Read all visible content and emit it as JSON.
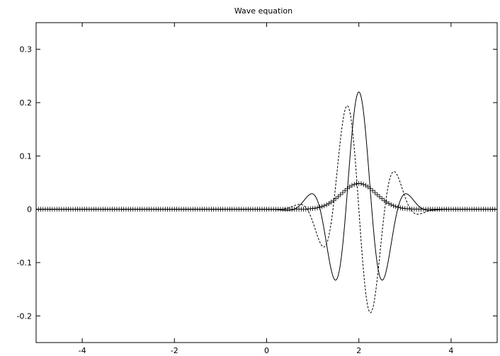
{
  "chart_data": {
    "type": "line",
    "title": "Wave equation",
    "xlabel": "",
    "ylabel": "",
    "xlim": [
      -5,
      5
    ],
    "ylim": [
      -0.25,
      0.35
    ],
    "xticks": [
      -4,
      -2,
      0,
      2,
      4
    ],
    "yticks": [
      -0.2,
      -0.1,
      0,
      0.1,
      0.2,
      0.3
    ],
    "ytick_labels": [
      "-0.2",
      "-0.1",
      "0",
      "0.1",
      "0.2",
      "0.3"
    ],
    "grid": false,
    "legend": "none",
    "series": [
      {
        "style": "solid",
        "color": "#000000",
        "amplitude": 0.22,
        "center": 2.0,
        "width": 0.75,
        "wavenumber": 5.6,
        "phase": 0.0
      },
      {
        "style": "dashed",
        "color": "#000000",
        "amplitude": 0.22,
        "center": 2.0,
        "width": 0.75,
        "wavenumber": 5.6,
        "phase": 1.5708
      },
      {
        "style": "markers",
        "marker": "plus",
        "color": "#000000",
        "amplitude": 0.0484,
        "center": 2.0,
        "width": 0.53,
        "x_step": 0.05
      }
    ]
  }
}
